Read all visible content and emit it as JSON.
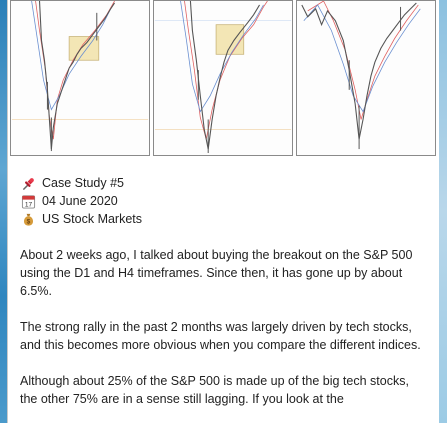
{
  "post": {
    "case_label": "Case Study #5",
    "date": "04 June 2020",
    "market": "US Stock Markets",
    "calendar_day": "17",
    "paragraphs": [
      "About 2 weeks ago, I talked about buying the breakout on the S&P 500 using the D1 and H4 timeframes. Since then, it has gone up by about 6.5%.",
      "The strong rally in the past 2 months was largely driven by tech stocks, and this becomes more obvious when you compare the different indices.",
      "Although about 25% of the S&P 500 is made up of the big tech stocks, the other 75% are in a sense still lagging. If you look at the"
    ]
  },
  "icons": {
    "pin": "pushpin-icon",
    "calendar": "calendar-icon",
    "money": "money-bag-icon"
  },
  "colors": {
    "candle": "#555555",
    "ma_red": "#e06060",
    "ma_blue": "#6a8fd0",
    "highlight": "#f3e6b5",
    "window_edge": "#2a7fb8"
  }
}
